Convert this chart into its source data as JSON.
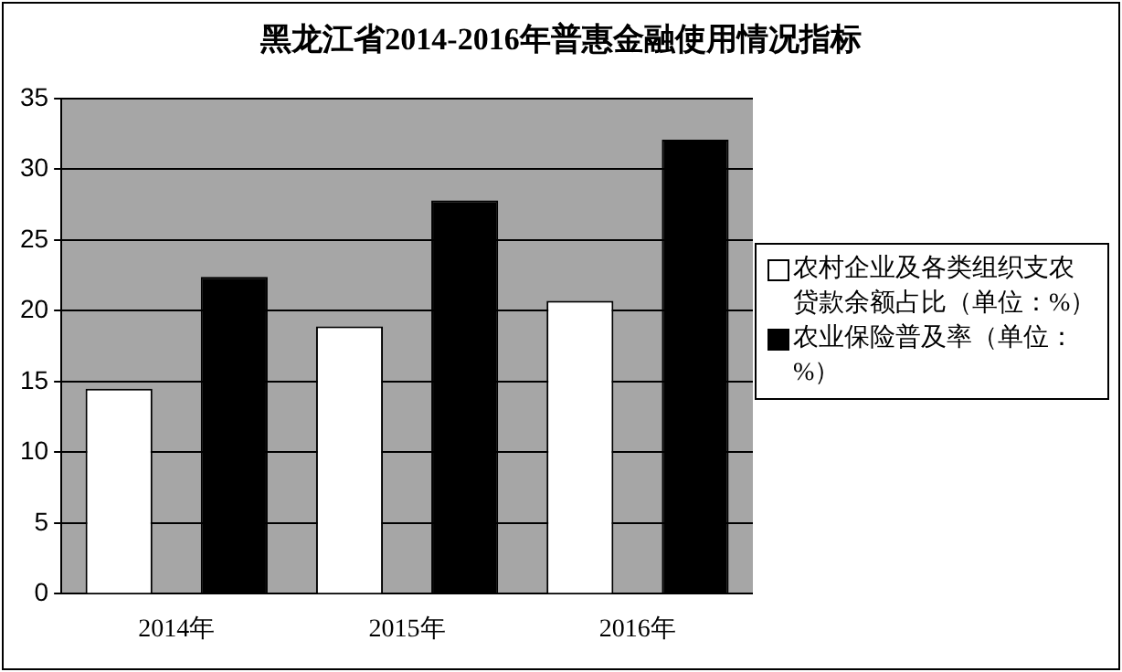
{
  "chart_data": {
    "type": "bar",
    "title": "黑龙江省2014-2016年普惠金融使用情况指标",
    "categories": [
      "2014年",
      "2015年",
      "2016年"
    ],
    "series": [
      {
        "name": "农村企业及各类组织支农贷款余额占比（单位：%）",
        "color": "#ffffff",
        "values": [
          14.5,
          18.9,
          20.7
        ]
      },
      {
        "name": "农业保险普及率（单位：%）",
        "color": "#000000",
        "values": [
          22.4,
          27.8,
          32.1
        ]
      }
    ],
    "ylim": [
      0,
      35
    ],
    "yticks": [
      0,
      5,
      10,
      15,
      20,
      25,
      30,
      35
    ],
    "grid": "y",
    "legend": "right"
  }
}
